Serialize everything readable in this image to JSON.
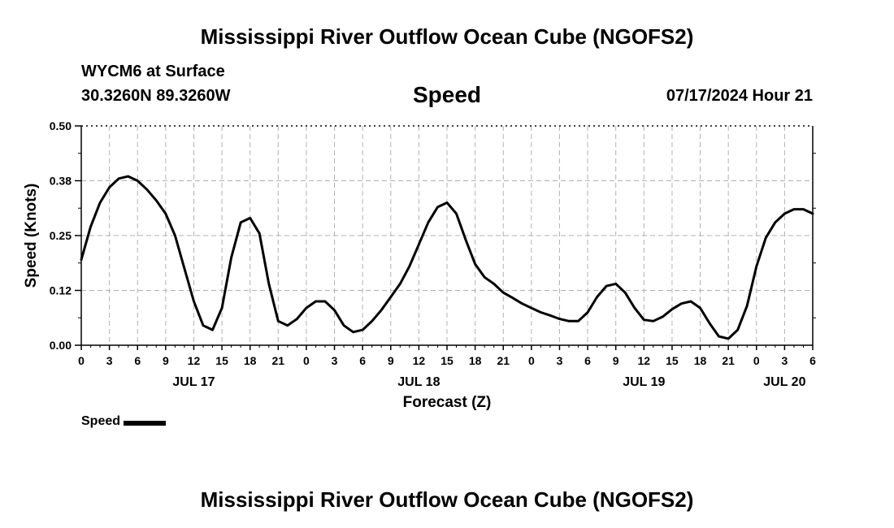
{
  "header": {
    "title_top": "Mississippi River Outflow Ocean Cube (NGOFS2)",
    "title_bottom": "Mississippi River Outflow Ocean Cube (NGOFS2)",
    "station": "WYCM6 at Surface",
    "coords": "30.3260N  89.3260W",
    "datetime": "07/17/2024 Hour 21"
  },
  "colors": {
    "line": "#000000",
    "grid": "#b0b0b0"
  },
  "chart_data": {
    "type": "line",
    "title": "Speed",
    "xlabel": "Forecast (Z)",
    "ylabel": "Speed (Knots)",
    "ylim": [
      0,
      0.5
    ],
    "yticks": [
      0.0,
      0.125,
      0.25,
      0.375,
      0.5
    ],
    "ytick_labels": [
      "0.00",
      "0.12",
      "0.25",
      "0.38",
      "0.50"
    ],
    "xlim": [
      0,
      78
    ],
    "xticks": [
      0,
      3,
      6,
      9,
      12,
      15,
      18,
      21,
      24,
      27,
      30,
      33,
      36,
      39,
      42,
      45,
      48,
      51,
      54,
      57,
      60,
      63,
      66,
      69,
      72,
      75,
      78
    ],
    "xtick_labels": [
      "0",
      "3",
      "6",
      "9",
      "12",
      "15",
      "18",
      "21",
      "0",
      "3",
      "6",
      "9",
      "12",
      "15",
      "18",
      "21",
      "0",
      "3",
      "6",
      "9",
      "12",
      "15",
      "18",
      "21",
      "0",
      "3",
      "6"
    ],
    "date_labels": [
      {
        "x": 12,
        "label": "JUL 17"
      },
      {
        "x": 36,
        "label": "JUL 18"
      },
      {
        "x": 60,
        "label": "JUL 19"
      },
      {
        "x": 75,
        "label": "JUL 20"
      }
    ],
    "grid": true,
    "legend": "bottom-left",
    "series": [
      {
        "name": "Speed",
        "x": [
          0,
          1,
          2,
          3,
          4,
          5,
          6,
          7,
          8,
          9,
          10,
          11,
          12,
          13,
          14,
          15,
          16,
          17,
          18,
          19,
          20,
          21,
          22,
          23,
          24,
          25,
          26,
          27,
          28,
          29,
          30,
          31,
          32,
          33,
          34,
          35,
          36,
          37,
          38,
          39,
          40,
          41,
          42,
          43,
          44,
          45,
          46,
          47,
          48,
          49,
          50,
          51,
          52,
          53,
          54,
          55,
          56,
          57,
          58,
          59,
          60,
          61,
          62,
          63,
          64,
          65,
          66,
          67,
          68,
          69,
          70,
          71,
          72,
          73,
          74,
          75,
          76,
          77,
          78
        ],
        "values": [
          0.195,
          0.27,
          0.325,
          0.36,
          0.38,
          0.385,
          0.375,
          0.355,
          0.33,
          0.3,
          0.25,
          0.175,
          0.1,
          0.045,
          0.035,
          0.085,
          0.2,
          0.28,
          0.29,
          0.255,
          0.14,
          0.055,
          0.045,
          0.06,
          0.085,
          0.1,
          0.1,
          0.08,
          0.045,
          0.03,
          0.035,
          0.055,
          0.08,
          0.11,
          0.14,
          0.18,
          0.23,
          0.28,
          0.315,
          0.325,
          0.3,
          0.24,
          0.185,
          0.155,
          0.14,
          0.12,
          0.108,
          0.095,
          0.085,
          0.075,
          0.068,
          0.06,
          0.055,
          0.055,
          0.075,
          0.11,
          0.135,
          0.14,
          0.12,
          0.085,
          0.058,
          0.055,
          0.065,
          0.082,
          0.095,
          0.1,
          0.085,
          0.05,
          0.02,
          0.015,
          0.035,
          0.09,
          0.18,
          0.245,
          0.28,
          0.3,
          0.31,
          0.31,
          0.3
        ]
      }
    ]
  }
}
